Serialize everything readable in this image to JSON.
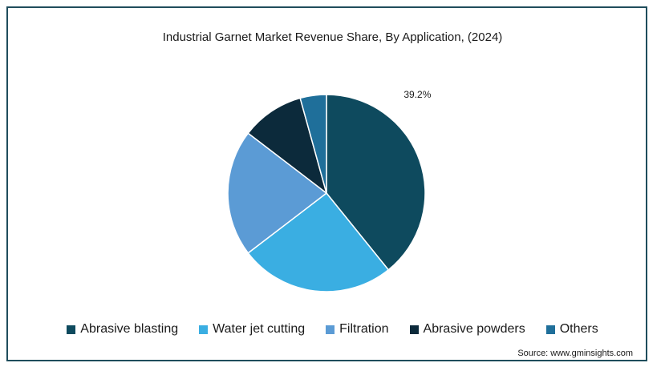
{
  "title": "Industrial Garnet Market Revenue Share, By Application, (2024)",
  "source": "Source: www.gminsights.com",
  "chart_data": {
    "type": "pie",
    "title": "Industrial Garnet Market Revenue Share, By Application, (2024)",
    "legend_position": "bottom",
    "series": [
      {
        "name": "Abrasive blasting",
        "value": 39.2,
        "color": "#0e4a5e",
        "label": "39.2%"
      },
      {
        "name": "Water jet cutting",
        "value": 25.4,
        "color": "#3aaee2",
        "label": ""
      },
      {
        "name": "Filtration",
        "value": 20.8,
        "color": "#5b9bd5",
        "label": ""
      },
      {
        "name": "Abrasive powders",
        "value": 10.3,
        "color": "#0c2a3b",
        "label": ""
      },
      {
        "name": "Others",
        "value": 4.3,
        "color": "#1f6f9a",
        "label": ""
      }
    ]
  }
}
